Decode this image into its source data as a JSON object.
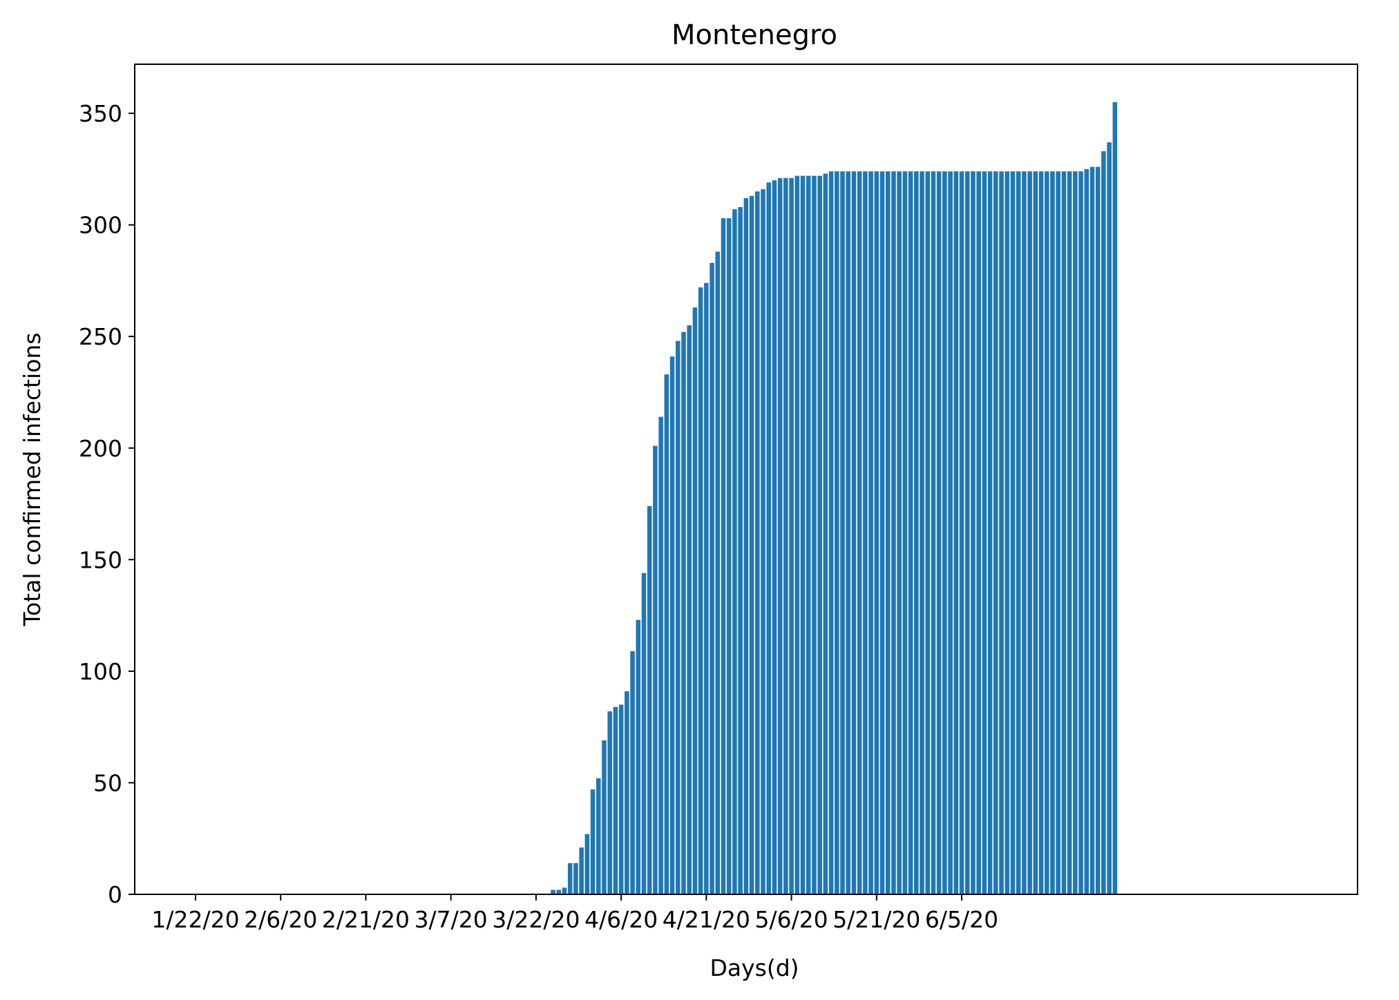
{
  "chart_data": {
    "type": "bar",
    "title": "Montenegro",
    "xlabel": "Days(d)",
    "ylabel": "Total confirmed infections",
    "color": "#1f77b4",
    "x_start": "1/22/20",
    "x_end": "6/21/20",
    "xticks": [
      "1/22/20",
      "2/6/20",
      "2/21/20",
      "3/7/20",
      "3/22/20",
      "4/6/20",
      "4/21/20",
      "5/6/20",
      "5/21/20",
      "6/5/20"
    ],
    "yticks": [
      0,
      50,
      100,
      150,
      200,
      250,
      300,
      350
    ],
    "ylim": [
      0,
      372
    ],
    "grid": false,
    "values": [
      0,
      0,
      0,
      0,
      0,
      0,
      0,
      0,
      0,
      0,
      0,
      0,
      0,
      0,
      0,
      0,
      0,
      0,
      0,
      0,
      0,
      0,
      0,
      0,
      0,
      0,
      0,
      0,
      0,
      0,
      0,
      0,
      0,
      0,
      0,
      0,
      0,
      0,
      0,
      0,
      0,
      0,
      0,
      0,
      0,
      0,
      0,
      0,
      0,
      0,
      0,
      0,
      0,
      0,
      0,
      0,
      0,
      0,
      0,
      0,
      0,
      0,
      0,
      2,
      2,
      3,
      14,
      14,
      21,
      27,
      47,
      52,
      69,
      82,
      84,
      85,
      91,
      109,
      123,
      144,
      174,
      201,
      214,
      233,
      241,
      248,
      252,
      255,
      263,
      272,
      274,
      283,
      288,
      303,
      303,
      307,
      308,
      312,
      313,
      315,
      316,
      319,
      320,
      321,
      321,
      321,
      322,
      322,
      322,
      322,
      322,
      323,
      324,
      324,
      324,
      324,
      324,
      324,
      324,
      324,
      324,
      324,
      324,
      324,
      324,
      324,
      324,
      324,
      324,
      324,
      324,
      324,
      324,
      324,
      324,
      324,
      324,
      324,
      324,
      324,
      324,
      324,
      324,
      324,
      324,
      324,
      324,
      324,
      324,
      324,
      324,
      324,
      324,
      324,
      324,
      324,
      324,
      325,
      326,
      326,
      333,
      337,
      355
    ]
  }
}
